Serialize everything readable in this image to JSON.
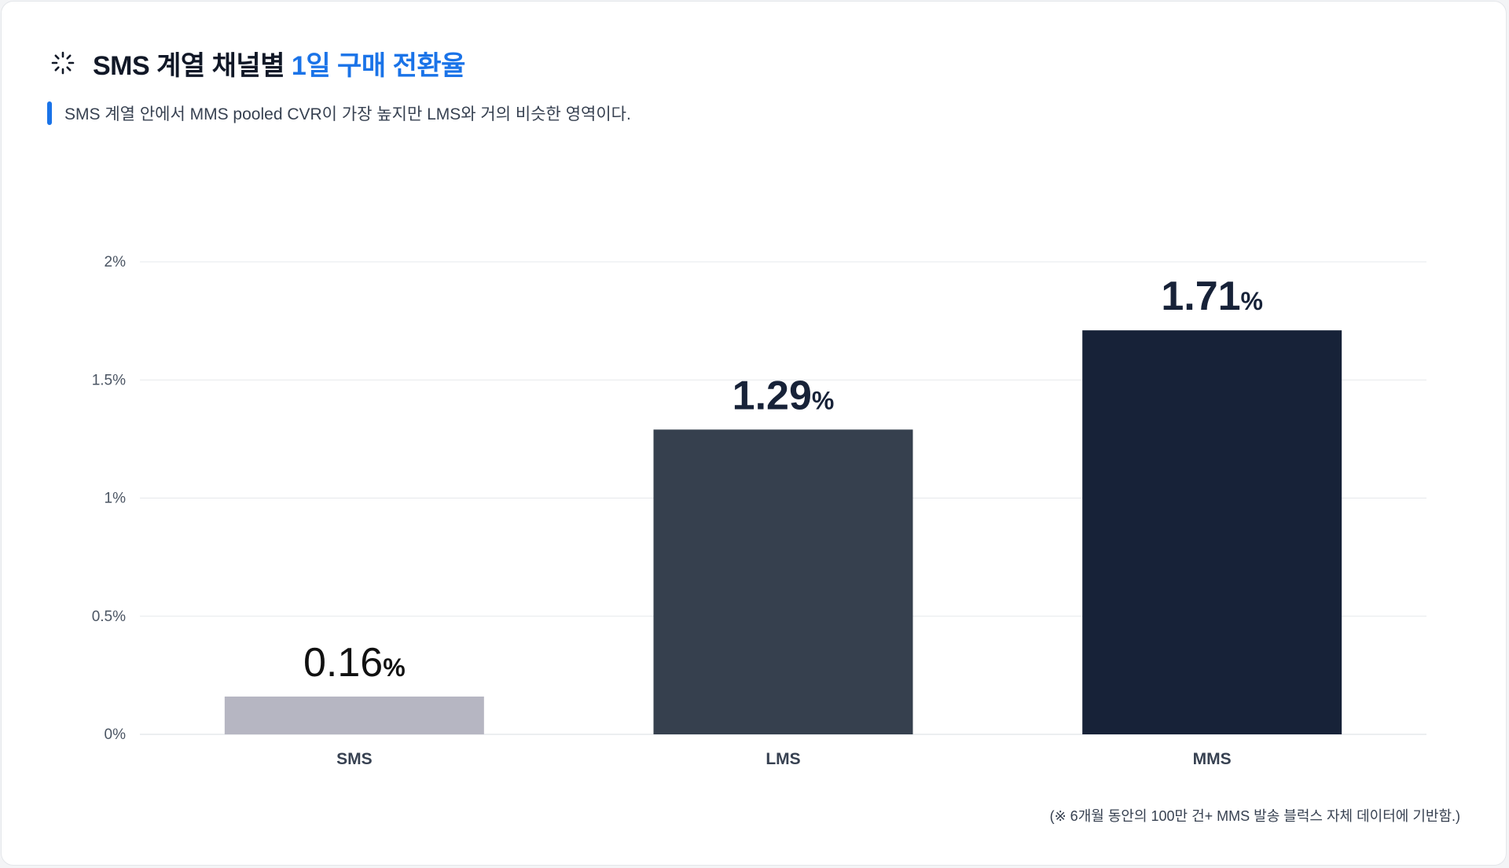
{
  "header": {
    "title_prefix": "SMS 계열 채널별 ",
    "title_accent": "1일 구매 전환율",
    "subtitle": "SMS 계열 안에서 MMS pooled CVR이 가장 높지만 LMS와 거의 비슷한 영역이다.",
    "icon": "loader-icon"
  },
  "footnote": "(※ 6개월 동안의 100만 건+ MMS 발송 블럭스 자체 데이터에 기반함.)",
  "colors": {
    "accent": "#1a73e8",
    "bar_sms": "#b6b6c2",
    "bar_lms": "#36404e",
    "bar_mms": "#172238",
    "grid": "#e6e8ec",
    "axis_text": "#4b5563"
  },
  "chart_data": {
    "type": "bar",
    "categories": [
      "SMS",
      "LMS",
      "MMS"
    ],
    "values": [
      0.16,
      1.29,
      1.71
    ],
    "value_labels": [
      "0.16",
      "1.29",
      "1.71"
    ],
    "value_unit": "%",
    "ylim": [
      0,
      2
    ],
    "yticks": [
      0,
      0.5,
      1,
      1.5,
      2
    ],
    "ytick_labels": [
      "0%",
      "0.5%",
      "1%",
      "1.5%",
      "2%"
    ],
    "grid": true,
    "bar_colors": [
      "#b6b6c2",
      "#36404e",
      "#172238"
    ]
  }
}
